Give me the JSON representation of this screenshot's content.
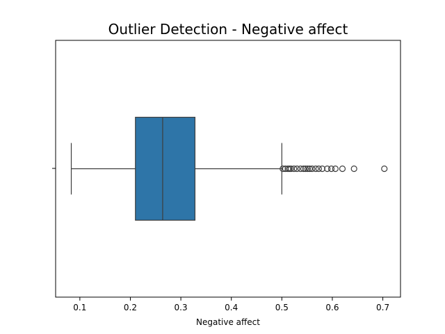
{
  "chart_data": {
    "type": "box",
    "title": "Outlier Detection - Negative affect",
    "xlabel": "Negative affect",
    "ylabel": "",
    "xlim": [
      0.052,
      0.735
    ],
    "xticks": [
      0.1,
      0.2,
      0.3,
      0.4,
      0.5,
      0.6,
      0.7
    ],
    "xtick_labels": [
      "0.1",
      "0.2",
      "0.3",
      "0.4",
      "0.5",
      "0.6",
      "0.7"
    ],
    "orientation": "horizontal",
    "grid": false,
    "legend": "none",
    "box": {
      "whisker_low": 0.083,
      "q1": 0.21,
      "median": 0.264,
      "q3": 0.328,
      "whisker_high": 0.5
    },
    "outliers": [
      0.502,
      0.507,
      0.512,
      0.515,
      0.518,
      0.524,
      0.53,
      0.537,
      0.543,
      0.547,
      0.551,
      0.555,
      0.56,
      0.567,
      0.573,
      0.58,
      0.59,
      0.598,
      0.606,
      0.62,
      0.643,
      0.703
    ],
    "box_color": "#2e75a8",
    "line_color": "#3d3d3d"
  }
}
